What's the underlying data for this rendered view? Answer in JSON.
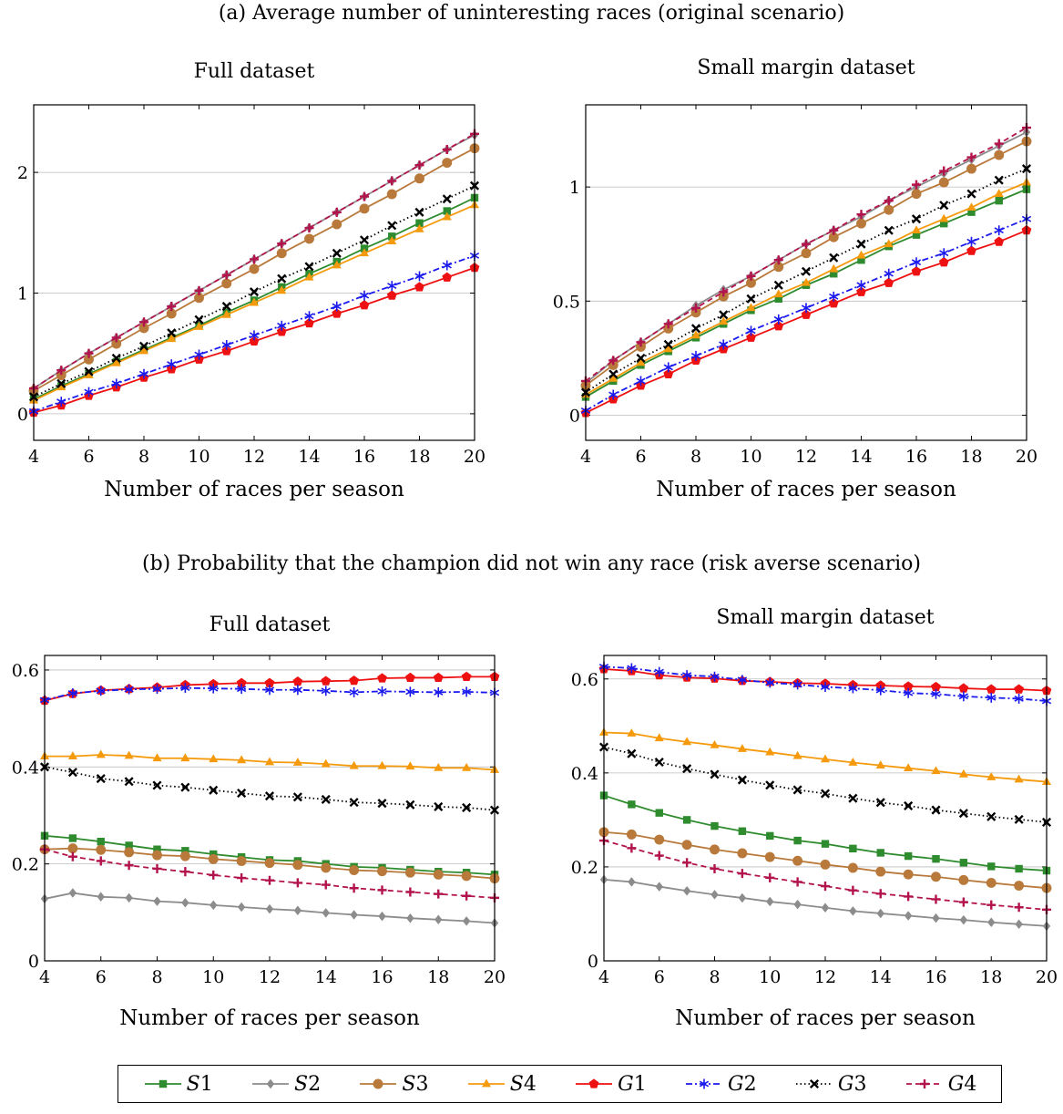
{
  "captions": {
    "a": "(a) Average number of uninteresting races (original scenario)",
    "b": "(b) Probability that the champion did not win any race (risk averse scenario)"
  },
  "series_styles": [
    {
      "name": "S1",
      "label_letter": "S",
      "label_digit": "1",
      "color": "#2e8b2e",
      "dash": "",
      "marker": "square"
    },
    {
      "name": "S2",
      "label_letter": "S",
      "label_digit": "2",
      "color": "#8c8c8c",
      "dash": "",
      "marker": "diamond"
    },
    {
      "name": "S3",
      "label_letter": "S",
      "label_digit": "3",
      "color": "#b8793a",
      "dash": "",
      "marker": "circle"
    },
    {
      "name": "S4",
      "label_letter": "S",
      "label_digit": "4",
      "color": "#f59a0c",
      "dash": "",
      "marker": "triangle"
    },
    {
      "name": "G1",
      "label_letter": "G",
      "label_digit": "1",
      "color": "#ee1111",
      "dash": "",
      "marker": "pentagon"
    },
    {
      "name": "G2",
      "label_letter": "G",
      "label_digit": "2",
      "color": "#1a1aee",
      "dash": "7 3 2 3",
      "marker": "asterisk"
    },
    {
      "name": "G3",
      "label_letter": "G",
      "label_digit": "3",
      "color": "#000000",
      "dash": "1.5 3",
      "marker": "x"
    },
    {
      "name": "G4",
      "label_letter": "G",
      "label_digit": "4",
      "color": "#b3134d",
      "dash": "6 4",
      "marker": "plus"
    }
  ],
  "chart_data": [
    {
      "type": "line",
      "title": "Full dataset",
      "xlabel": "Number of races per season",
      "ylabel": "",
      "xlim": [
        4,
        20
      ],
      "ylim": [
        -0.22,
        2.56
      ],
      "xticks": [
        4,
        6,
        8,
        10,
        12,
        14,
        16,
        18,
        20
      ],
      "yticks": [
        0,
        1,
        2
      ],
      "ytick_labels": [
        "0",
        "1",
        "2"
      ],
      "grid": "horizontal",
      "x": [
        4,
        5,
        6,
        7,
        8,
        9,
        10,
        11,
        12,
        13,
        14,
        15,
        16,
        17,
        18,
        19,
        20
      ],
      "series": [
        {
          "name": "S1",
          "values": [
            0.12,
            0.23,
            0.33,
            0.43,
            0.53,
            0.63,
            0.73,
            0.84,
            0.94,
            1.05,
            1.16,
            1.26,
            1.37,
            1.47,
            1.58,
            1.68,
            1.79
          ]
        },
        {
          "name": "S2",
          "values": [
            0.21,
            0.36,
            0.5,
            0.63,
            0.76,
            0.89,
            1.02,
            1.15,
            1.28,
            1.41,
            1.54,
            1.67,
            1.8,
            1.93,
            2.06,
            2.19,
            2.31
          ]
        },
        {
          "name": "S3",
          "values": [
            0.19,
            0.32,
            0.45,
            0.58,
            0.71,
            0.83,
            0.96,
            1.08,
            1.2,
            1.33,
            1.45,
            1.57,
            1.7,
            1.82,
            1.95,
            2.08,
            2.2
          ]
        },
        {
          "name": "S4",
          "values": [
            0.11,
            0.22,
            0.32,
            0.42,
            0.52,
            0.62,
            0.72,
            0.82,
            0.92,
            1.02,
            1.13,
            1.23,
            1.33,
            1.43,
            1.53,
            1.63,
            1.73
          ]
        },
        {
          "name": "G1",
          "values": [
            0.01,
            0.07,
            0.15,
            0.22,
            0.3,
            0.37,
            0.45,
            0.52,
            0.6,
            0.68,
            0.75,
            0.83,
            0.9,
            0.98,
            1.05,
            1.13,
            1.21
          ]
        },
        {
          "name": "G2",
          "values": [
            0.02,
            0.1,
            0.18,
            0.25,
            0.33,
            0.41,
            0.49,
            0.57,
            0.65,
            0.73,
            0.81,
            0.89,
            0.98,
            1.06,
            1.14,
            1.23,
            1.31
          ]
        },
        {
          "name": "G3",
          "values": [
            0.14,
            0.25,
            0.35,
            0.46,
            0.56,
            0.67,
            0.78,
            0.89,
            1.01,
            1.12,
            1.22,
            1.33,
            1.44,
            1.56,
            1.67,
            1.78,
            1.89
          ]
        },
        {
          "name": "G4",
          "values": [
            0.21,
            0.36,
            0.5,
            0.63,
            0.76,
            0.89,
            1.02,
            1.15,
            1.28,
            1.41,
            1.54,
            1.67,
            1.8,
            1.93,
            2.06,
            2.19,
            2.32
          ]
        }
      ]
    },
    {
      "type": "line",
      "title": "Small margin dataset",
      "xlabel": "Number of races per season",
      "ylabel": "",
      "xlim": [
        4,
        20
      ],
      "ylim": [
        -0.11,
        1.36
      ],
      "xticks": [
        4,
        6,
        8,
        10,
        12,
        14,
        16,
        18,
        20
      ],
      "yticks": [
        0,
        0.5,
        1
      ],
      "ytick_labels": [
        "0",
        "0.5",
        "1"
      ],
      "grid": "horizontal",
      "x": [
        4,
        5,
        6,
        7,
        8,
        9,
        10,
        11,
        12,
        13,
        14,
        15,
        16,
        17,
        18,
        19,
        20
      ],
      "series": [
        {
          "name": "S1",
          "values": [
            0.08,
            0.15,
            0.22,
            0.28,
            0.34,
            0.4,
            0.46,
            0.51,
            0.57,
            0.62,
            0.68,
            0.74,
            0.79,
            0.84,
            0.89,
            0.94,
            0.99
          ]
        },
        {
          "name": "S2",
          "values": [
            0.14,
            0.24,
            0.32,
            0.4,
            0.48,
            0.55,
            0.61,
            0.68,
            0.75,
            0.81,
            0.87,
            0.94,
            1.0,
            1.06,
            1.12,
            1.18,
            1.24
          ]
        },
        {
          "name": "S3",
          "values": [
            0.13,
            0.22,
            0.3,
            0.38,
            0.45,
            0.52,
            0.58,
            0.65,
            0.71,
            0.78,
            0.84,
            0.9,
            0.97,
            1.02,
            1.08,
            1.14,
            1.2
          ]
        },
        {
          "name": "S4",
          "values": [
            0.09,
            0.16,
            0.23,
            0.29,
            0.35,
            0.41,
            0.47,
            0.53,
            0.58,
            0.64,
            0.7,
            0.75,
            0.81,
            0.86,
            0.91,
            0.97,
            1.02
          ]
        },
        {
          "name": "G1",
          "values": [
            0.01,
            0.07,
            0.13,
            0.18,
            0.24,
            0.29,
            0.34,
            0.39,
            0.44,
            0.49,
            0.54,
            0.58,
            0.63,
            0.67,
            0.72,
            0.76,
            0.81
          ]
        },
        {
          "name": "G2",
          "values": [
            0.02,
            0.09,
            0.15,
            0.21,
            0.26,
            0.31,
            0.37,
            0.42,
            0.47,
            0.52,
            0.57,
            0.62,
            0.67,
            0.71,
            0.76,
            0.81,
            0.86
          ]
        },
        {
          "name": "G3",
          "values": [
            0.1,
            0.18,
            0.25,
            0.31,
            0.38,
            0.44,
            0.51,
            0.57,
            0.63,
            0.69,
            0.75,
            0.81,
            0.86,
            0.92,
            0.97,
            1.03,
            1.08
          ]
        },
        {
          "name": "G4",
          "values": [
            0.15,
            0.24,
            0.32,
            0.4,
            0.47,
            0.54,
            0.61,
            0.68,
            0.75,
            0.81,
            0.88,
            0.94,
            1.01,
            1.07,
            1.13,
            1.19,
            1.26
          ]
        }
      ]
    },
    {
      "type": "line",
      "title": "Full dataset",
      "xlabel": "Number of races per season",
      "ylabel": "",
      "xlim": [
        4,
        20
      ],
      "ylim": [
        0,
        0.63
      ],
      "xticks": [
        4,
        6,
        8,
        10,
        12,
        14,
        16,
        18,
        20
      ],
      "yticks": [
        0,
        0.2,
        0.4,
        0.6
      ],
      "ytick_labels": [
        "0",
        "0.2",
        "0.4",
        "0.6"
      ],
      "grid": "horizontal",
      "x": [
        4,
        5,
        6,
        7,
        8,
        9,
        10,
        11,
        12,
        13,
        14,
        15,
        16,
        17,
        18,
        19,
        20
      ],
      "series": [
        {
          "name": "S1",
          "values": [
            0.258,
            0.253,
            0.246,
            0.238,
            0.23,
            0.227,
            0.22,
            0.214,
            0.208,
            0.206,
            0.2,
            0.194,
            0.192,
            0.188,
            0.184,
            0.182,
            0.178
          ]
        },
        {
          "name": "S2",
          "values": [
            0.128,
            0.14,
            0.132,
            0.13,
            0.123,
            0.12,
            0.115,
            0.111,
            0.107,
            0.104,
            0.099,
            0.095,
            0.092,
            0.088,
            0.085,
            0.082,
            0.078
          ]
        },
        {
          "name": "S3",
          "values": [
            0.23,
            0.232,
            0.229,
            0.224,
            0.218,
            0.216,
            0.21,
            0.206,
            0.202,
            0.198,
            0.192,
            0.187,
            0.185,
            0.182,
            0.178,
            0.175,
            0.17
          ]
        },
        {
          "name": "S4",
          "values": [
            0.422,
            0.422,
            0.425,
            0.423,
            0.418,
            0.418,
            0.416,
            0.414,
            0.41,
            0.409,
            0.406,
            0.402,
            0.402,
            0.401,
            0.398,
            0.398,
            0.394
          ]
        },
        {
          "name": "G1",
          "values": [
            0.537,
            0.551,
            0.558,
            0.561,
            0.564,
            0.569,
            0.571,
            0.573,
            0.573,
            0.576,
            0.577,
            0.578,
            0.583,
            0.584,
            0.584,
            0.586,
            0.586
          ]
        },
        {
          "name": "G2",
          "values": [
            0.538,
            0.552,
            0.557,
            0.56,
            0.561,
            0.563,
            0.562,
            0.561,
            0.559,
            0.559,
            0.557,
            0.554,
            0.556,
            0.555,
            0.554,
            0.555,
            0.553
          ]
        },
        {
          "name": "G3",
          "values": [
            0.4,
            0.389,
            0.376,
            0.37,
            0.362,
            0.358,
            0.352,
            0.346,
            0.34,
            0.338,
            0.333,
            0.327,
            0.325,
            0.322,
            0.318,
            0.316,
            0.311
          ]
        },
        {
          "name": "G4",
          "values": [
            0.23,
            0.215,
            0.206,
            0.197,
            0.19,
            0.184,
            0.177,
            0.171,
            0.166,
            0.161,
            0.157,
            0.15,
            0.146,
            0.142,
            0.138,
            0.134,
            0.13
          ]
        }
      ]
    },
    {
      "type": "line",
      "title": "Small margin dataset",
      "xlabel": "Number of races per season",
      "ylabel": "",
      "xlim": [
        4,
        20
      ],
      "ylim": [
        0,
        0.65
      ],
      "xticks": [
        4,
        6,
        8,
        10,
        12,
        14,
        16,
        18,
        20
      ],
      "yticks": [
        0,
        0.2,
        0.4,
        0.6
      ],
      "ytick_labels": [
        "0",
        "0.2",
        "0.4",
        "0.6"
      ],
      "grid": "horizontal",
      "x": [
        4,
        5,
        6,
        7,
        8,
        9,
        10,
        11,
        12,
        13,
        14,
        15,
        16,
        17,
        18,
        19,
        20
      ],
      "series": [
        {
          "name": "S1",
          "values": [
            0.352,
            0.333,
            0.315,
            0.3,
            0.287,
            0.276,
            0.266,
            0.256,
            0.249,
            0.239,
            0.23,
            0.223,
            0.217,
            0.209,
            0.201,
            0.196,
            0.192
          ]
        },
        {
          "name": "S2",
          "values": [
            0.173,
            0.168,
            0.158,
            0.149,
            0.141,
            0.134,
            0.126,
            0.12,
            0.113,
            0.106,
            0.101,
            0.096,
            0.091,
            0.087,
            0.082,
            0.078,
            0.074
          ]
        },
        {
          "name": "S3",
          "values": [
            0.274,
            0.269,
            0.258,
            0.247,
            0.237,
            0.229,
            0.221,
            0.213,
            0.205,
            0.198,
            0.19,
            0.184,
            0.179,
            0.172,
            0.166,
            0.16,
            0.155
          ]
        },
        {
          "name": "S4",
          "values": [
            0.486,
            0.484,
            0.474,
            0.466,
            0.459,
            0.451,
            0.444,
            0.436,
            0.429,
            0.422,
            0.416,
            0.41,
            0.404,
            0.397,
            0.391,
            0.386,
            0.381
          ]
        },
        {
          "name": "G1",
          "values": [
            0.621,
            0.617,
            0.608,
            0.603,
            0.601,
            0.596,
            0.594,
            0.591,
            0.59,
            0.587,
            0.586,
            0.584,
            0.583,
            0.58,
            0.578,
            0.578,
            0.575
          ]
        },
        {
          "name": "G2",
          "values": [
            0.626,
            0.623,
            0.615,
            0.608,
            0.605,
            0.598,
            0.592,
            0.588,
            0.583,
            0.58,
            0.576,
            0.57,
            0.568,
            0.563,
            0.56,
            0.558,
            0.553
          ]
        },
        {
          "name": "G3",
          "values": [
            0.455,
            0.441,
            0.423,
            0.409,
            0.397,
            0.385,
            0.374,
            0.364,
            0.356,
            0.346,
            0.337,
            0.33,
            0.321,
            0.314,
            0.307,
            0.301,
            0.295
          ]
        },
        {
          "name": "G4",
          "values": [
            0.256,
            0.24,
            0.224,
            0.209,
            0.196,
            0.186,
            0.177,
            0.168,
            0.159,
            0.15,
            0.143,
            0.137,
            0.131,
            0.125,
            0.119,
            0.114,
            0.109
          ]
        }
      ]
    }
  ]
}
